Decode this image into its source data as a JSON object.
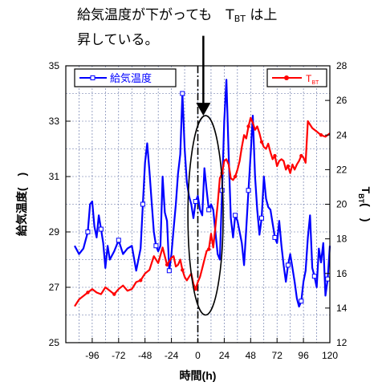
{
  "annotation": {
    "line1_prefix": "給気温度が下がっても　T",
    "line1_sub": "BT",
    "line1_suffix": " は上",
    "line2": "昇している。"
  },
  "chart_data": {
    "type": "line",
    "xlabel": "時間(h)",
    "ylabel_left": "給気温度(　)",
    "ylabel_right_main": "T",
    "ylabel_right_sub": "BT",
    "ylabel_right_suffix": "(　)",
    "xlim": [
      -120,
      120
    ],
    "xticks": [
      -96,
      -72,
      -48,
      -24,
      0,
      24,
      48,
      72,
      96,
      120
    ],
    "ylim_left": [
      25,
      35
    ],
    "yticks_left": [
      25,
      27,
      29,
      31,
      33,
      35
    ],
    "ylim_right": [
      12,
      28
    ],
    "yticks_right": [
      12,
      14,
      16,
      18,
      20,
      22,
      24,
      26,
      28
    ],
    "grid": true,
    "vline_x": 0,
    "highlight_ellipse": {
      "x_center": 7,
      "y_center_left": 29.6,
      "x_halfwidth": 16,
      "y_halfwidth_left": 3.6
    },
    "arrow": {
      "from_left_y": 36.2,
      "to_left_y": 33.2,
      "x": 5
    },
    "series": [
      {
        "name": "給気温度",
        "axis": "left",
        "color": "#0000ff",
        "marker": "open-square",
        "x": [
          -112,
          -108,
          -104,
          -100,
          -98,
          -96,
          -94,
          -92,
          -90,
          -88,
          -86,
          -84,
          -82,
          -80,
          -76,
          -72,
          -68,
          -64,
          -60,
          -56,
          -52,
          -50,
          -48,
          -46,
          -44,
          -42,
          -40,
          -38,
          -36,
          -34,
          -32,
          -30,
          -28,
          -26,
          -24,
          -22,
          -20,
          -18,
          -16,
          -14,
          -12,
          -10,
          -8,
          -6,
          -4,
          -2,
          0,
          2,
          4,
          6,
          8,
          10,
          12,
          14,
          16,
          18,
          20,
          22,
          24,
          26,
          28,
          30,
          32,
          34,
          36,
          38,
          40,
          42,
          44,
          46,
          48,
          50,
          52,
          54,
          56,
          58,
          60,
          62,
          64,
          66,
          68,
          70,
          72,
          74,
          76,
          78,
          80,
          82,
          84,
          86,
          88,
          90,
          92,
          94,
          96,
          98,
          100,
          102,
          104,
          106,
          108,
          110,
          112,
          114,
          116,
          118,
          120
        ],
        "values": [
          28.5,
          28.2,
          28.4,
          29.0,
          30.0,
          30.1,
          29.2,
          28.8,
          29.6,
          29.1,
          28.6,
          27.7,
          28.5,
          28.0,
          28.3,
          28.7,
          28.2,
          28.4,
          28.5,
          27.6,
          28.4,
          30.0,
          31.5,
          32.2,
          31.2,
          30.1,
          29.0,
          28.5,
          28.3,
          28.5,
          31.0,
          29.7,
          29.4,
          27.6,
          28.2,
          29.1,
          30.0,
          31.1,
          31.8,
          34.0,
          32.0,
          30.8,
          30.3,
          30.0,
          29.5,
          30.1,
          30.3,
          29.8,
          29.6,
          31.3,
          30.5,
          29.8,
          30.0,
          29.8,
          29.0,
          28.2,
          28.0,
          30.5,
          33.0,
          34.5,
          31.8,
          29.5,
          28.8,
          29.6,
          29.4,
          29.0,
          28.6,
          27.8,
          29.1,
          30.5,
          31.8,
          33.2,
          31.0,
          29.8,
          28.9,
          29.5,
          31.0,
          30.2,
          29.9,
          29.8,
          29.3,
          28.8,
          28.6,
          29.4,
          28.5,
          27.8,
          27.2,
          27.8,
          28.2,
          27.7,
          27.2,
          26.6,
          26.3,
          26.5,
          27.2,
          27.6,
          28.8,
          29.6,
          27.7,
          27.4,
          27.0,
          28.4,
          27.9,
          28.6,
          26.7,
          27.3,
          28.5
        ]
      },
      {
        "name": "T_BT",
        "axis": "right",
        "color": "#ff0000",
        "marker": "filled-circle",
        "x": [
          -112,
          -108,
          -104,
          -100,
          -96,
          -92,
          -88,
          -84,
          -80,
          -76,
          -72,
          -68,
          -64,
          -60,
          -56,
          -52,
          -48,
          -44,
          -40,
          -36,
          -32,
          -28,
          -24,
          -22,
          -20,
          -18,
          -16,
          -14,
          -12,
          -10,
          -8,
          -6,
          -4,
          -2,
          0,
          2,
          4,
          6,
          8,
          10,
          12,
          14,
          16,
          18,
          20,
          22,
          24,
          26,
          28,
          30,
          32,
          34,
          36,
          38,
          40,
          42,
          44,
          46,
          48,
          50,
          52,
          54,
          56,
          58,
          60,
          62,
          64,
          66,
          68,
          70,
          72,
          74,
          76,
          78,
          80,
          82,
          84,
          86,
          88,
          90,
          92,
          94,
          96,
          98,
          100,
          104,
          108,
          112,
          116,
          120
        ],
        "values": [
          14.1,
          14.5,
          14.7,
          14.9,
          15.1,
          14.9,
          14.8,
          15.2,
          15.0,
          14.8,
          15.1,
          15.3,
          15.0,
          15.1,
          15.5,
          15.6,
          16.0,
          16.2,
          17.0,
          16.6,
          17.5,
          16.5,
          16.9,
          17.0,
          16.4,
          16.5,
          16.8,
          16.2,
          15.8,
          15.6,
          15.8,
          16.0,
          15.4,
          15.1,
          15.5,
          15.8,
          16.3,
          16.8,
          17.3,
          17.4,
          18.3,
          17.5,
          18.7,
          20.0,
          21.5,
          21.8,
          22.5,
          22.6,
          22.3,
          21.5,
          21.4,
          21.6,
          22.0,
          22.5,
          23.3,
          24.0,
          23.8,
          24.5,
          25.0,
          24.7,
          24.3,
          24.5,
          24.1,
          23.6,
          23.3,
          23.2,
          23.5,
          23.0,
          22.6,
          22.8,
          22.2,
          22.5,
          22.6,
          22.5,
          22.0,
          22.2,
          21.8,
          22.3,
          22.0,
          22.3,
          22.5,
          22.8,
          22.7,
          22.4,
          24.8,
          24.4,
          24.2,
          24.0,
          23.9,
          24.1
        ]
      }
    ]
  }
}
